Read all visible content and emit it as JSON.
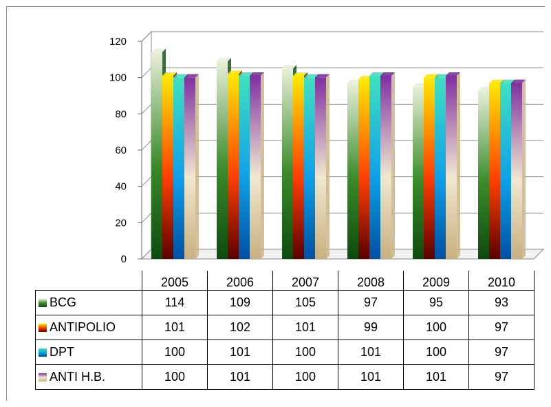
{
  "colors": {
    "BCG": [
      "#e8f0d8",
      "#3a8a2a",
      "#0d4a0d"
    ],
    "ANTIPOLIO": [
      "#ffe800",
      "#ff4000",
      "#5a0000"
    ],
    "DPT": [
      "#40e0c0",
      "#10a0e8",
      "#0050a0"
    ],
    "ANTI H.B.": [
      "#8030a0",
      "#f0e8d0",
      "#c8b080"
    ]
  },
  "chart_data": {
    "type": "bar",
    "categories": [
      "2005",
      "2006",
      "2007",
      "2008",
      "2009",
      "2010"
    ],
    "series": [
      {
        "name": "BCG",
        "values": [
          114,
          109,
          105,
          97,
          95,
          93
        ]
      },
      {
        "name": "ANTIPOLIO",
        "values": [
          101,
          102,
          101,
          99,
          100,
          97
        ]
      },
      {
        "name": "DPT",
        "values": [
          100,
          101,
          100,
          101,
          100,
          97
        ]
      },
      {
        "name": "ANTI H.B.",
        "values": [
          100,
          101,
          100,
          101,
          101,
          97
        ]
      }
    ],
    "ylim": [
      0,
      120
    ],
    "yticks": [
      "0",
      "20",
      "40",
      "60",
      "80",
      "100",
      "120"
    ],
    "grid": true,
    "legend": "data table",
    "data_table": true
  }
}
